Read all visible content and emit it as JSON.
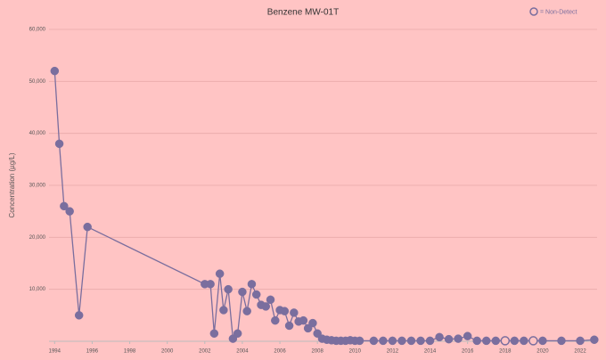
{
  "chart_data": {
    "type": "line",
    "title": "Benzene MW-01T",
    "y_label": "Concentration (µg/L)",
    "legend": {
      "label": "= Non-Detect",
      "corner": "top-right"
    },
    "x": [
      1994.0,
      1994.25,
      1994.5,
      1994.8,
      1995.3,
      1995.75,
      2002.0,
      2002.3,
      2002.5,
      2002.8,
      2003.0,
      2003.25,
      2003.5,
      2003.75,
      2004.0,
      2004.25,
      2004.5,
      2004.75,
      2005.0,
      2005.25,
      2005.5,
      2005.75,
      2006.0,
      2006.25,
      2006.5,
      2006.75,
      2007.0,
      2007.25,
      2007.5,
      2007.75,
      2008.0,
      2008.25,
      2008.5,
      2008.75,
      2009.0,
      2009.25,
      2009.5,
      2009.75,
      2010.0,
      2010.25,
      2011.0,
      2011.5,
      2012.0,
      2012.5,
      2013.0,
      2013.5,
      2014.0,
      2014.5,
      2015.0,
      2015.5,
      2016.0,
      2016.5,
      2017.0,
      2017.5,
      2018.0,
      2018.5,
      2019.0,
      2019.5,
      2020.0,
      2021.0,
      2022.0,
      2022.75
    ],
    "series": [
      {
        "color": "#7a6e9e",
        "values": [
          52000,
          38000,
          26000,
          25000,
          5000,
          22000,
          11000,
          11000,
          1500,
          13000,
          6000,
          10000,
          500,
          1500,
          9500,
          5800,
          11000,
          9000,
          7000,
          6700,
          8000,
          4000,
          6000,
          5800,
          3000,
          5500,
          3800,
          4000,
          2500,
          3500,
          1500,
          500,
          300,
          200,
          100,
          100,
          100,
          200,
          100,
          100,
          100,
          100,
          100,
          100,
          100,
          100,
          100,
          800,
          400,
          500,
          1000,
          100,
          100,
          100,
          100,
          100,
          100,
          100,
          100,
          100,
          100,
          300
        ],
        "markers": [
          "filled",
          "filled",
          "filled",
          "filled",
          "filled",
          "filled",
          "filled",
          "filled",
          "filled",
          "filled",
          "filled",
          "filled",
          "filled",
          "filled",
          "filled",
          "filled",
          "filled",
          "filled",
          "filled",
          "filled",
          "filled",
          "filled",
          "filled",
          "filled",
          "filled",
          "filled",
          "filled",
          "filled",
          "filled",
          "filled",
          "filled",
          "filled",
          "filled",
          "filled",
          "filled",
          "filled",
          "filled",
          "filled",
          "filled",
          "filled",
          "filled",
          "filled",
          "filled",
          "filled",
          "filled",
          "filled",
          "filled",
          "filled",
          "filled",
          "filled",
          "filled",
          "filled",
          "filled",
          "filled",
          "hollow",
          "filled",
          "filled",
          "hollow",
          "filled",
          "filled",
          "filled",
          "filled"
        ]
      }
    ],
    "xlim": [
      1993.7,
      2022.9
    ],
    "xticks": [
      1994,
      1996,
      1998,
      2000,
      2002,
      2004,
      2006,
      2008,
      2010,
      2012,
      2014,
      2016,
      2018,
      2020,
      2022
    ],
    "ylim": [
      0,
      60000
    ],
    "yticks": [
      {
        "value": 10000,
        "label": "10,000"
      },
      {
        "value": 20000,
        "label": "20,000"
      },
      {
        "value": 30000,
        "label": "30,000"
      },
      {
        "value": 40000,
        "label": "40,000"
      },
      {
        "value": 50000,
        "label": "50,000"
      },
      {
        "value": 60000,
        "label": "60,000"
      }
    ],
    "grid": true,
    "background": "#ffc4c4"
  }
}
